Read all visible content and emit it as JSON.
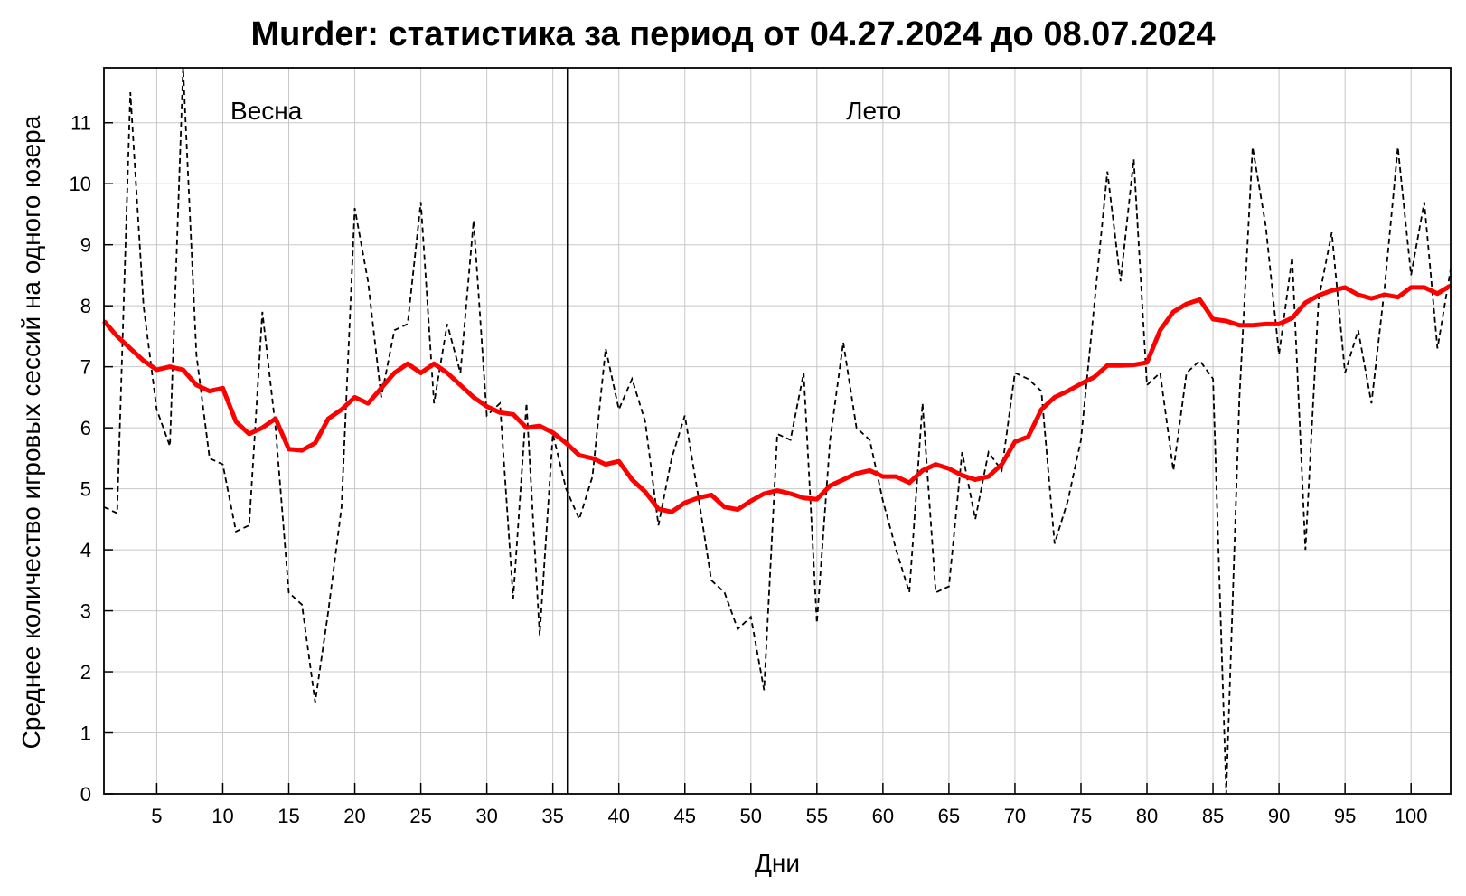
{
  "chart_data": {
    "type": "line",
    "title": "Murder: статистика за период от 04.27.2024 до 08.07.2024",
    "xlabel": "Дни",
    "ylabel": "Среднее количество игровых сессий на одного юзера",
    "xlim": [
      1,
      103
    ],
    "ylim": [
      0,
      11.9
    ],
    "xticks": [
      5,
      10,
      15,
      20,
      25,
      30,
      35,
      40,
      45,
      50,
      55,
      60,
      65,
      70,
      75,
      80,
      85,
      90,
      95,
      100
    ],
    "yticks": [
      0,
      1,
      2,
      3,
      4,
      5,
      6,
      7,
      8,
      9,
      10,
      11
    ],
    "grid": true,
    "annotations": [
      {
        "text": "Весна",
        "x": 13.3,
        "y": 11.2
      },
      {
        "text": "Лето",
        "x": 59.3,
        "y": 11.2
      }
    ],
    "season_boundary_x": 36.1,
    "series": [
      {
        "style": "dashed",
        "color": "#000000",
        "x": [
          1,
          2,
          3,
          4,
          5,
          6,
          7,
          8,
          9,
          10,
          11,
          12,
          13,
          14,
          15,
          16,
          17,
          18,
          19,
          20,
          21,
          22,
          23,
          24,
          25,
          26,
          27,
          28,
          29,
          30,
          31,
          32,
          33,
          34,
          35,
          36,
          37,
          38,
          39,
          40,
          41,
          42,
          43,
          44,
          45,
          46,
          47,
          48,
          49,
          50,
          51,
          52,
          53,
          54,
          55,
          56,
          57,
          58,
          59,
          60,
          61,
          62,
          63,
          64,
          65,
          66,
          67,
          68,
          69,
          70,
          71,
          72,
          73,
          74,
          75,
          76,
          77,
          78,
          79,
          80,
          81,
          82,
          83,
          84,
          85,
          86,
          87,
          88,
          89,
          90,
          91,
          92,
          93,
          94,
          95,
          96,
          97,
          98,
          99,
          100,
          101,
          102,
          103
        ],
        "values": [
          4.7,
          4.6,
          11.5,
          8.0,
          6.3,
          5.7,
          11.9,
          7.2,
          5.5,
          5.4,
          4.3,
          4.4,
          7.9,
          6.0,
          3.3,
          3.1,
          1.5,
          3.0,
          4.7,
          9.6,
          8.4,
          6.5,
          7.6,
          7.7,
          9.7,
          6.4,
          7.7,
          6.9,
          9.4,
          6.2,
          6.4,
          3.2,
          6.4,
          2.6,
          5.9,
          5.0,
          4.5,
          5.2,
          7.3,
          6.3,
          6.8,
          6.1,
          4.4,
          5.5,
          6.2,
          4.9,
          3.5,
          3.3,
          2.7,
          2.9,
          1.7,
          5.9,
          5.8,
          6.9,
          2.8,
          5.8,
          7.4,
          6.0,
          5.8,
          4.8,
          4.0,
          3.3,
          6.4,
          3.3,
          3.4,
          5.6,
          4.5,
          5.6,
          5.3,
          6.9,
          6.8,
          6.6,
          4.1,
          4.8,
          5.8,
          8.0,
          10.2,
          8.4,
          10.4,
          6.7,
          6.9,
          5.3,
          6.9,
          7.1,
          6.8,
          0.0,
          6.5,
          10.6,
          9.3,
          7.2,
          8.8,
          4.0,
          8.1,
          9.2,
          6.9,
          7.6,
          6.4,
          8.3,
          10.6,
          8.5,
          9.7,
          7.3,
          8.6
        ]
      },
      {
        "style": "solid",
        "color": "#ff0000",
        "x": [
          1,
          2,
          3,
          4,
          5,
          6,
          7,
          8,
          9,
          10,
          11,
          12,
          13,
          14,
          15,
          16,
          17,
          18,
          19,
          20,
          21,
          22,
          23,
          24,
          25,
          26,
          27,
          28,
          29,
          30,
          31,
          32,
          33,
          34,
          35,
          36,
          37,
          38,
          39,
          40,
          41,
          42,
          43,
          44,
          45,
          46,
          47,
          48,
          49,
          50,
          51,
          52,
          53,
          54,
          55,
          56,
          57,
          58,
          59,
          60,
          61,
          62,
          63,
          64,
          65,
          66,
          67,
          68,
          69,
          70,
          71,
          72,
          73,
          74,
          75,
          76,
          77,
          78,
          79,
          80,
          81,
          82,
          83,
          84,
          85,
          86,
          87,
          88,
          89,
          90,
          91,
          92,
          93,
          94,
          95,
          96,
          97,
          98,
          99,
          100,
          101,
          102,
          103
        ],
        "values": [
          7.75,
          7.5,
          7.3,
          7.1,
          6.95,
          7.0,
          6.95,
          6.7,
          6.6,
          6.65,
          6.1,
          5.9,
          6.0,
          6.15,
          5.65,
          5.63,
          5.75,
          6.15,
          6.3,
          6.5,
          6.4,
          6.65,
          6.9,
          7.05,
          6.9,
          7.05,
          6.9,
          6.7,
          6.5,
          6.35,
          6.25,
          6.22,
          6.0,
          6.03,
          5.92,
          5.75,
          5.55,
          5.5,
          5.4,
          5.45,
          5.15,
          4.95,
          4.67,
          4.62,
          4.77,
          4.85,
          4.9,
          4.7,
          4.66,
          4.8,
          4.92,
          4.97,
          4.92,
          4.85,
          4.83,
          5.05,
          5.15,
          5.25,
          5.3,
          5.2,
          5.2,
          5.1,
          5.3,
          5.4,
          5.33,
          5.22,
          5.15,
          5.2,
          5.4,
          5.77,
          5.85,
          6.3,
          6.5,
          6.6,
          6.72,
          6.83,
          7.02,
          7.02,
          7.03,
          7.07,
          7.6,
          7.9,
          8.03,
          8.1,
          7.78,
          7.75,
          7.68,
          7.68,
          7.7,
          7.7,
          7.8,
          8.05,
          8.17,
          8.25,
          8.3,
          8.18,
          8.12,
          8.18,
          8.14,
          8.3,
          8.3,
          8.2,
          8.33
        ]
      }
    ]
  }
}
